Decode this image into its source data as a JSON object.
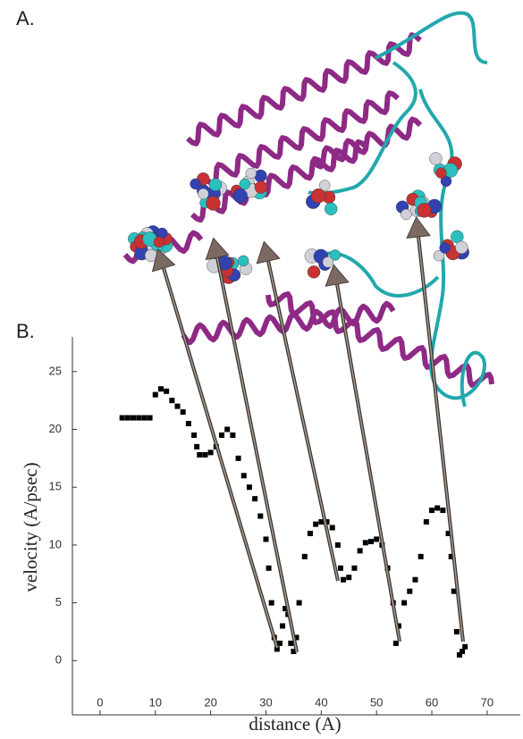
{
  "chart_data": {
    "type": "scatter",
    "panel_labels": [
      "A.",
      "B."
    ],
    "x_label": "distance (A)",
    "y_label": "velocity (A/psec)",
    "color": "#000000",
    "x": [
      4,
      5,
      6,
      7,
      8,
      9,
      10,
      11,
      12,
      13,
      14,
      15,
      16,
      17,
      17.5,
      18,
      19,
      20,
      21,
      22,
      23,
      24,
      25,
      26,
      27,
      28,
      29,
      30,
      30.5,
      31,
      31.5,
      32,
      32.5,
      33,
      33.5,
      34,
      34.5,
      35,
      35.5,
      36,
      37,
      38,
      39,
      40,
      41,
      42,
      43,
      43.5,
      44,
      45,
      46,
      47,
      48,
      49,
      50,
      51,
      52,
      53,
      53.5,
      54,
      55,
      56,
      57,
      58,
      59,
      60,
      61,
      62,
      63,
      63.5,
      64,
      64.5,
      65,
      65.5,
      66
    ],
    "values": [
      21,
      21,
      21,
      21,
      21,
      21,
      23,
      23.5,
      23.3,
      22.5,
      22,
      21.5,
      20.5,
      19.5,
      18.5,
      17.8,
      17.8,
      18,
      18.5,
      19.5,
      20,
      19.5,
      17.5,
      16,
      15,
      14,
      12.5,
      10.5,
      8,
      5,
      2,
      1,
      1.5,
      3,
      4.5,
      4,
      1.5,
      0.8,
      2,
      5,
      9,
      11,
      11.8,
      12,
      12,
      11.5,
      10,
      8,
      7,
      7.2,
      8,
      9.5,
      10.2,
      10.3,
      10.5,
      10,
      8,
      5,
      1.5,
      3,
      5,
      6,
      7,
      9,
      12,
      13,
      13.2,
      13,
      11,
      9,
      6,
      2.5,
      0.5,
      0.8,
      1.2
    ],
    "xlim": [
      -5,
      76
    ],
    "ylim": [
      -5,
      28
    ],
    "xticks": [
      0,
      10,
      20,
      30,
      40,
      50,
      60,
      70
    ],
    "yticks": [
      0,
      5,
      10,
      15,
      20,
      25
    ]
  }
}
